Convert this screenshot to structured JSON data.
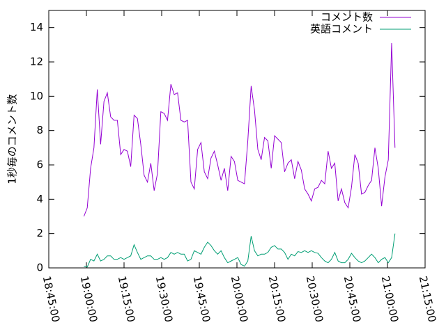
{
  "chart_data": {
    "type": "line",
    "ylabel": "1秒毎のコメント数",
    "x": [
      "18:59:00",
      "19:00:20",
      "19:01:40",
      "19:03:00",
      "19:04:20",
      "19:05:40",
      "19:07:00",
      "19:08:20",
      "19:09:40",
      "19:11:00",
      "19:12:20",
      "19:13:40",
      "19:15:00",
      "19:16:20",
      "19:17:40",
      "19:19:00",
      "19:20:20",
      "19:21:40",
      "19:23:00",
      "19:24:20",
      "19:25:40",
      "19:27:00",
      "19:28:20",
      "19:29:40",
      "19:31:00",
      "19:32:20",
      "19:33:40",
      "19:35:00",
      "19:36:20",
      "19:37:40",
      "19:39:00",
      "19:40:20",
      "19:41:40",
      "19:43:00",
      "19:44:20",
      "19:45:40",
      "19:47:00",
      "19:48:20",
      "19:49:40",
      "19:51:00",
      "19:52:20",
      "19:53:40",
      "19:55:00",
      "19:56:20",
      "19:57:40",
      "19:59:00",
      "20:00:20",
      "20:01:40",
      "20:03:00",
      "20:04:20",
      "20:05:40",
      "20:07:00",
      "20:08:20",
      "20:09:40",
      "20:11:00",
      "20:12:20",
      "20:13:40",
      "20:15:00",
      "20:16:20",
      "20:17:40",
      "20:19:00",
      "20:20:20",
      "20:21:40",
      "20:23:00",
      "20:24:20",
      "20:25:40",
      "20:27:00",
      "20:28:20",
      "20:29:40",
      "20:31:00",
      "20:32:20",
      "20:33:40",
      "20:35:00",
      "20:36:20",
      "20:37:40",
      "20:39:00",
      "20:40:20",
      "20:41:40",
      "20:43:00",
      "20:44:20",
      "20:45:40",
      "20:47:00",
      "20:48:20",
      "20:49:40",
      "20:51:00",
      "20:52:20",
      "20:53:40",
      "20:55:00",
      "20:56:20",
      "20:57:40",
      "20:59:00",
      "21:00:20",
      "21:01:40",
      "21:03:00"
    ],
    "series": [
      {
        "name": "コメント数",
        "color": "#9400d3",
        "values": [
          3.0,
          3.5,
          5.8,
          7.0,
          10.4,
          7.2,
          9.7,
          10.2,
          8.8,
          8.6,
          8.6,
          6.6,
          6.9,
          6.8,
          5.9,
          8.9,
          8.7,
          7.2,
          5.4,
          5.0,
          6.1,
          4.5,
          5.5,
          9.1,
          9.0,
          8.6,
          10.7,
          10.1,
          10.2,
          8.6,
          8.5,
          8.6,
          5.0,
          4.6,
          6.9,
          7.3,
          5.6,
          5.2,
          6.4,
          6.8,
          6.0,
          5.1,
          5.8,
          4.5,
          6.5,
          6.2,
          5.1,
          5.0,
          4.9,
          7.4,
          10.6,
          9.2,
          6.9,
          6.3,
          7.6,
          7.4,
          5.8,
          7.7,
          7.5,
          7.3,
          5.6,
          6.1,
          6.3,
          5.2,
          6.2,
          5.7,
          4.6,
          4.3,
          3.9,
          4.6,
          4.7,
          5.1,
          4.9,
          6.8,
          5.8,
          6.1,
          3.9,
          4.6,
          3.8,
          3.5,
          4.7,
          6.6,
          6.1,
          4.3,
          4.4,
          4.8,
          5.1,
          7.0,
          5.8,
          3.6,
          5.3,
          6.3,
          13.1,
          7.0
        ]
      },
      {
        "name": "英語コメント",
        "color": "#009e73",
        "values": [
          0.1,
          0.05,
          0.5,
          0.4,
          0.8,
          0.4,
          0.5,
          0.7,
          0.7,
          0.5,
          0.5,
          0.6,
          0.5,
          0.6,
          0.7,
          1.35,
          0.9,
          0.5,
          0.6,
          0.7,
          0.7,
          0.5,
          0.5,
          0.6,
          0.5,
          0.6,
          0.9,
          0.8,
          0.9,
          0.8,
          0.8,
          0.4,
          0.5,
          1.0,
          0.9,
          0.8,
          1.2,
          1.5,
          1.3,
          1.0,
          0.8,
          1.0,
          0.6,
          0.3,
          0.4,
          0.5,
          0.6,
          0.2,
          0.1,
          0.4,
          1.85,
          1.0,
          0.7,
          0.8,
          0.8,
          0.9,
          1.2,
          1.3,
          1.1,
          1.1,
          0.9,
          0.5,
          0.8,
          0.7,
          0.95,
          0.9,
          1.0,
          0.9,
          1.0,
          0.9,
          0.85,
          0.6,
          0.4,
          0.3,
          0.5,
          0.9,
          0.4,
          0.3,
          0.3,
          0.5,
          0.85,
          0.6,
          0.4,
          0.3,
          0.4,
          0.6,
          0.8,
          0.6,
          0.3,
          0.5,
          0.6,
          0.3,
          0.6,
          2.0
        ]
      }
    ],
    "xlim": [
      "18:45:00",
      "21:15:00"
    ],
    "xticks": [
      "18:45:00",
      "19:00:00",
      "19:15:00",
      "19:30:00",
      "19:45:00",
      "20:00:00",
      "20:15:00",
      "20:30:00",
      "20:45:00",
      "21:00:00",
      "21:15:00"
    ],
    "ylim": [
      0,
      15
    ],
    "yticks": [
      0,
      2,
      4,
      6,
      8,
      10,
      12,
      14
    ],
    "legend": "upper-right"
  }
}
